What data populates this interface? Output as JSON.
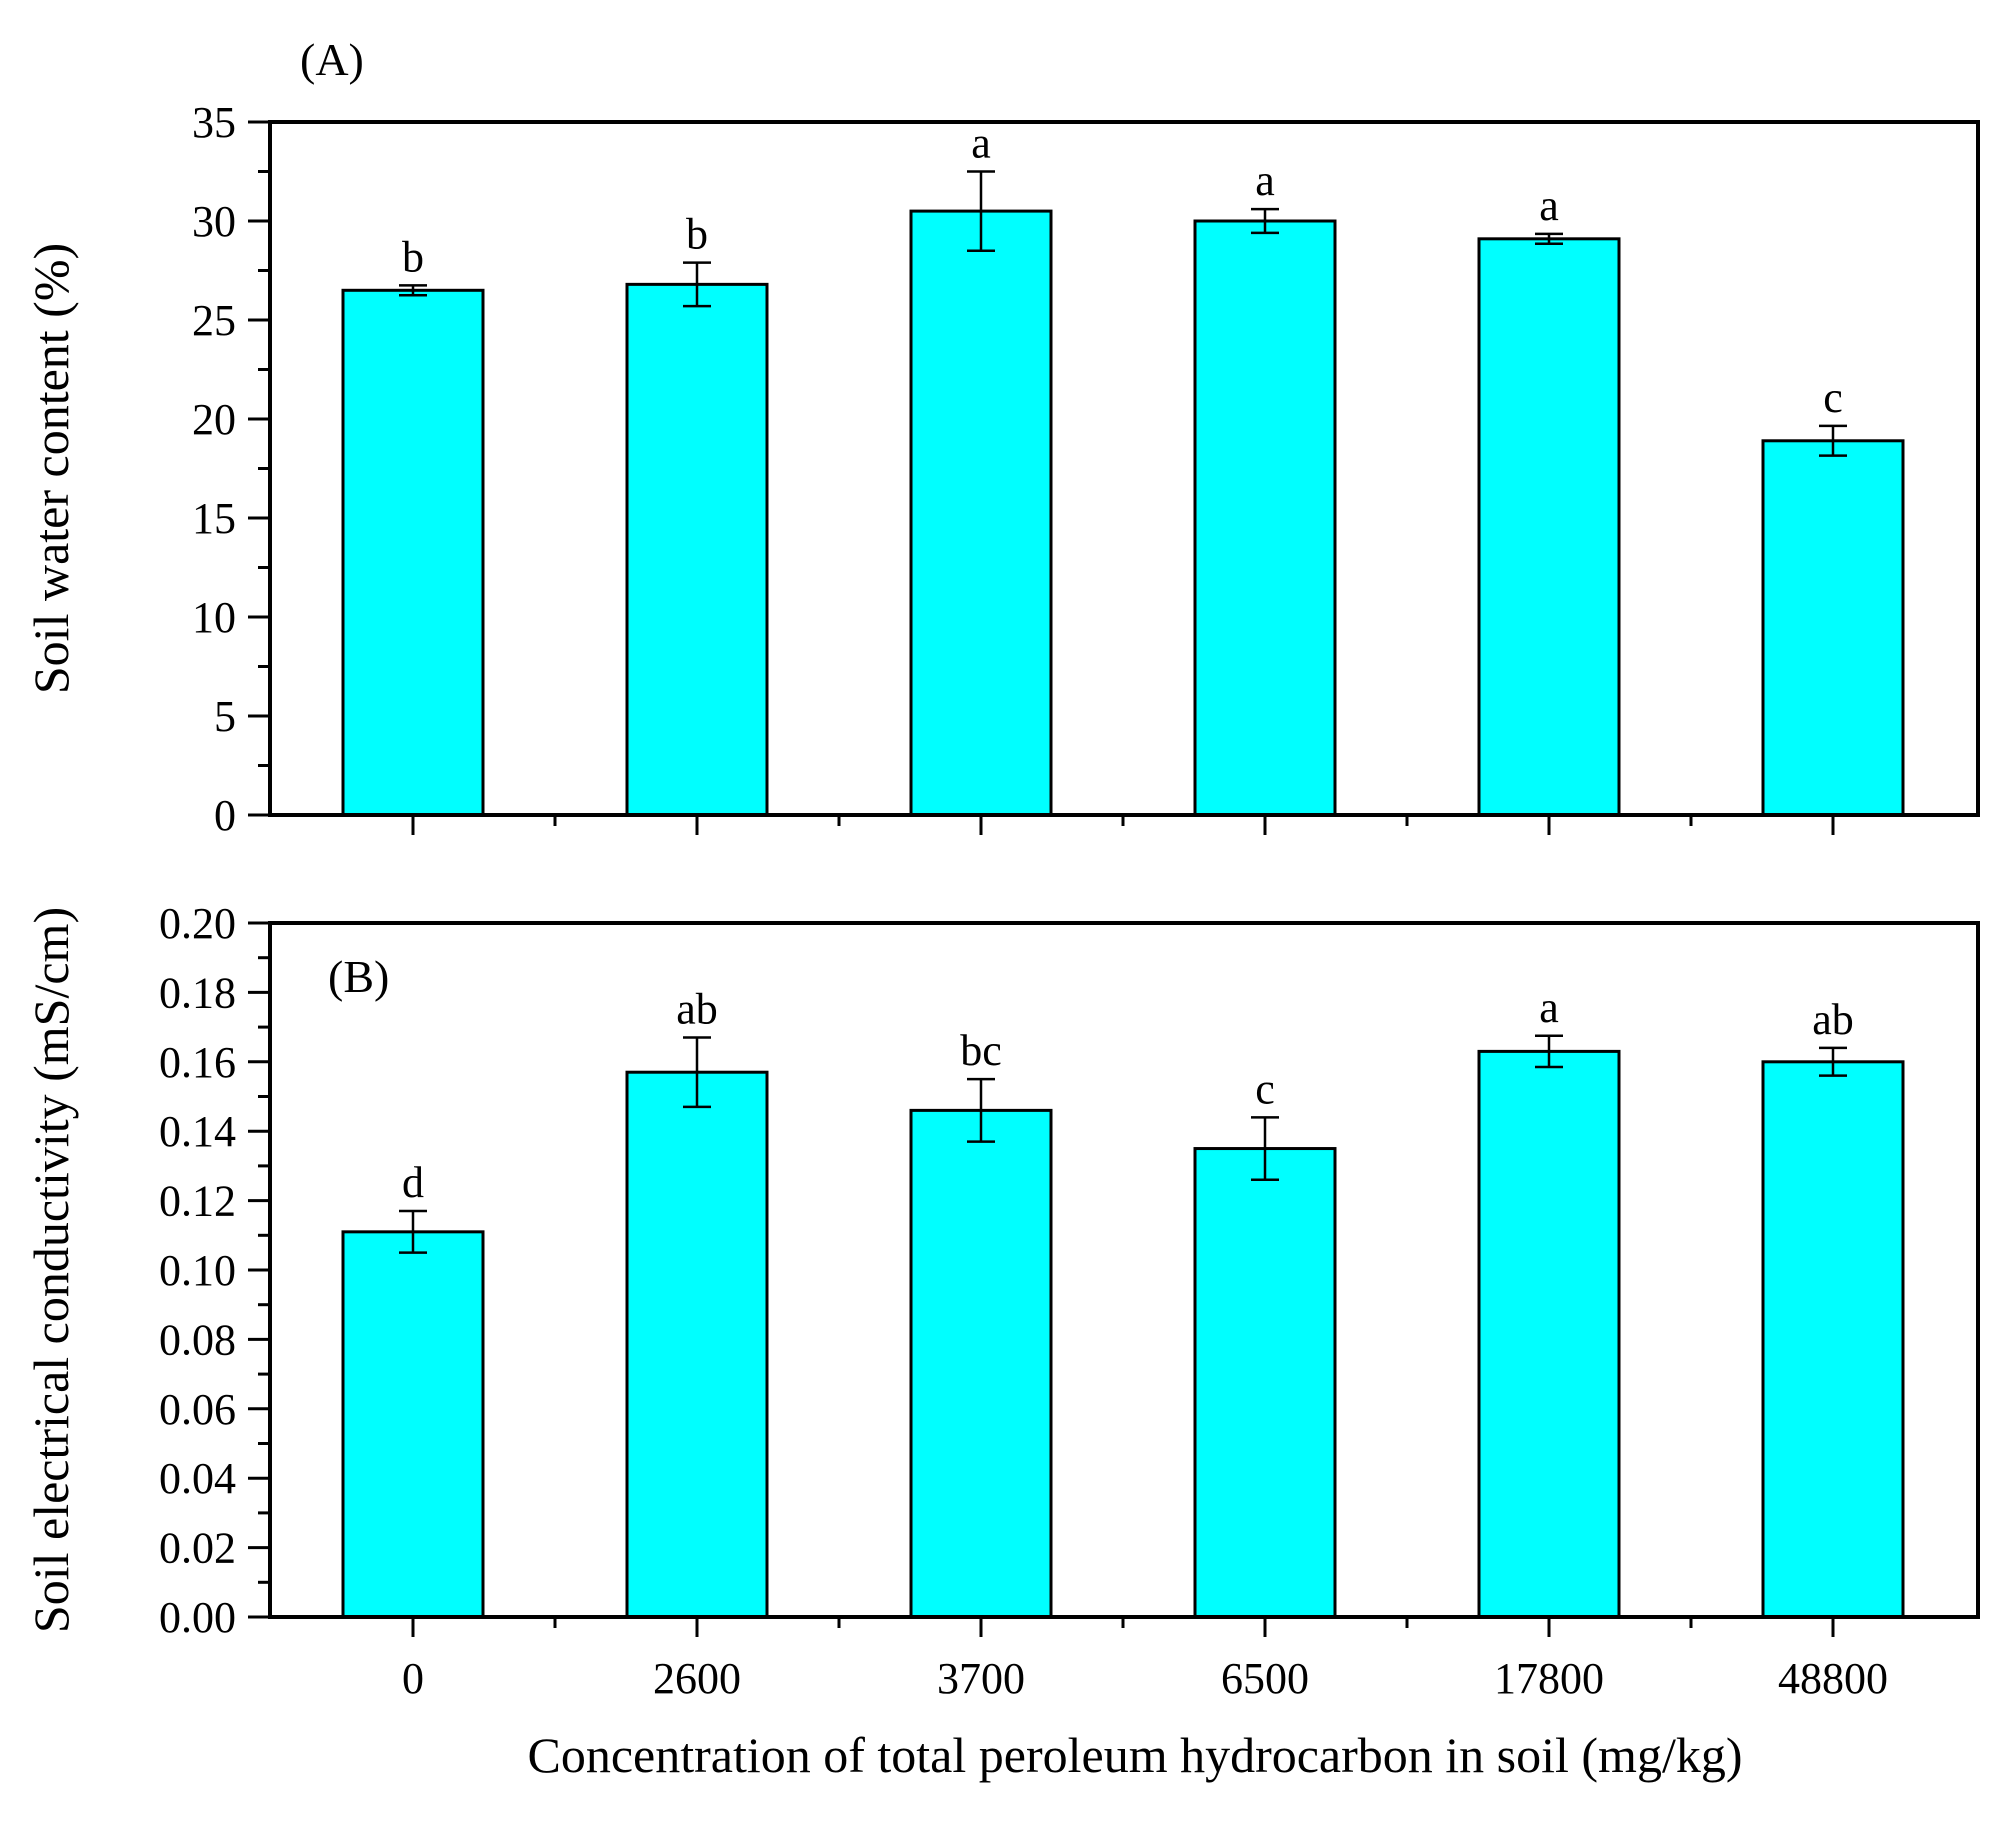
{
  "chart_data": [
    {
      "type": "bar",
      "panel_label": "(A)",
      "title": "",
      "xlabel": "",
      "ylabel": "Soil water content (%)",
      "categories": [
        "0",
        "2600",
        "3700",
        "6500",
        "17800",
        "48800"
      ],
      "values": [
        26.5,
        26.8,
        30.5,
        30.0,
        29.1,
        18.9
      ],
      "errors": [
        0.25,
        1.1,
        2.0,
        0.6,
        0.25,
        0.75
      ],
      "significance": [
        "b",
        "b",
        "a",
        "a",
        "a",
        "c"
      ],
      "ylim": [
        0,
        35
      ],
      "yticks": [
        "0",
        "5",
        "10",
        "15",
        "20",
        "25",
        "30",
        "35"
      ],
      "bar_color": "#00FFFF",
      "grid": false
    },
    {
      "type": "bar",
      "panel_label": "(B)",
      "title": "",
      "xlabel": "Concentration of total peroleum hydrocarbon in soil (mg/kg)",
      "ylabel": "Soil electrical conductivity (mS/cm)",
      "categories": [
        "0",
        "2600",
        "3700",
        "6500",
        "17800",
        "48800"
      ],
      "values": [
        0.111,
        0.157,
        0.146,
        0.135,
        0.163,
        0.16
      ],
      "errors": [
        0.006,
        0.01,
        0.009,
        0.009,
        0.0045,
        0.004
      ],
      "significance": [
        "d",
        "ab",
        "bc",
        "c",
        "a",
        "ab"
      ],
      "ylim": [
        0,
        0.2
      ],
      "yticks": [
        "0.00",
        "0.02",
        "0.04",
        "0.06",
        "0.08",
        "0.10",
        "0.12",
        "0.14",
        "0.16",
        "0.18",
        "0.20"
      ],
      "bar_color": "#00FFFF",
      "grid": false
    }
  ]
}
